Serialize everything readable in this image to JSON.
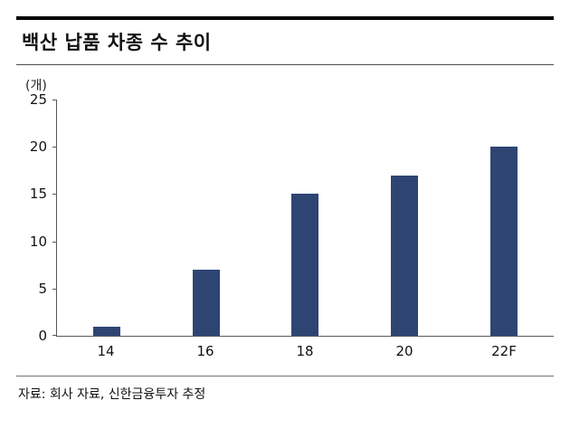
{
  "header": {
    "title": "백산 납품 차종 수 추이"
  },
  "chart_data": {
    "type": "bar",
    "title": "백산 납품 차종 수 추이",
    "unit_label": "(개)",
    "categories": [
      "14",
      "16",
      "18",
      "20",
      "22F"
    ],
    "values": [
      1,
      7,
      15,
      17,
      20
    ],
    "xlabel": "",
    "ylabel": "(개)",
    "ylim": [
      0,
      25
    ],
    "yticks": [
      0,
      5,
      10,
      15,
      20,
      25
    ],
    "grid": false,
    "legend": "none",
    "bar_color": "#2e4574"
  },
  "footer": {
    "source": "자료: 회사 자료, 신한금융투자 추정"
  }
}
